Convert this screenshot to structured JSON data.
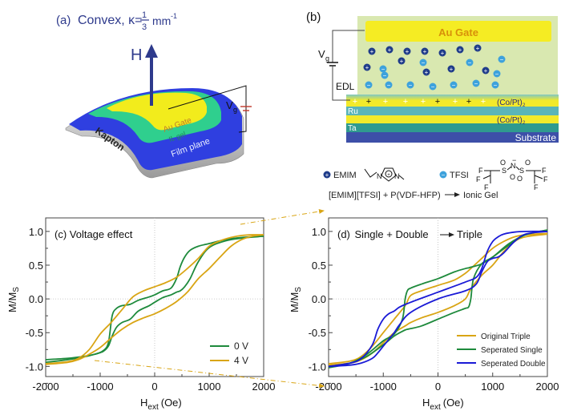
{
  "panel_a": {
    "label": "(a)",
    "title": "Convex, κ=",
    "frac_num": "1",
    "frac_den": "3",
    "unit": "mm",
    "unit_exp": "-1",
    "field_label": "H",
    "layer_labels": {
      "gate": "Au Gate",
      "gel": "IL gel",
      "film": "Film plane",
      "substrate": "Kapton"
    },
    "voltage_label": "V",
    "voltage_sub": "g",
    "colors": {
      "gate": "#f2ec1c",
      "gel": "#2fcf8e",
      "film": "#2f3fe0",
      "kapton": "#c8c8c8",
      "arrow": "#2e3a8c",
      "title": "#2e3a8c"
    }
  },
  "panel_b": {
    "label": "(b)",
    "gate_label": "Au Gate",
    "voltage_label": "V",
    "voltage_sub": "g",
    "edl_label": "EDL",
    "layers": [
      {
        "name": "(Co/Pt)",
        "sub": "2",
        "color": "#7fc7c4"
      },
      {
        "name": "Ru",
        "sub": "",
        "color": "#5bb5b8"
      },
      {
        "name": "(Co/Pt)",
        "sub": "2",
        "color": "#f3ea2a"
      },
      {
        "name": "Ta",
        "sub": "",
        "color": "#2f9a8f"
      },
      {
        "name": "Substrate",
        "sub": "",
        "color": "#3d4fa8"
      }
    ],
    "legend": {
      "cation_label": "EMIM",
      "anion_label": "TFSI",
      "reaction": "[EMIM][TFSI] + P(VDF-HFP)",
      "product": "Ionic Gel"
    },
    "colors": {
      "gel_bg": "#d9e8b0",
      "gate": "#f5ec23",
      "gate_text": "#d8900a",
      "cation": "#1f3c8a",
      "anion": "#3ea2dc"
    }
  },
  "chart_data": [
    {
      "type": "line",
      "title": "(c) Voltage effect",
      "xlabel": "H",
      "xlabel_sub": "ext",
      "xlabel_unit": "(Oe)",
      "ylabel": "M/M",
      "ylabel_sub": "S",
      "xlim": [
        -2000,
        2000
      ],
      "ylim": [
        -1.15,
        1.2
      ],
      "xticks": [
        -2000,
        -1000,
        0,
        1000,
        2000
      ],
      "xtick_labels": [
        "-2000",
        "-1000",
        "0",
        "1000",
        "2000"
      ],
      "yticks": [
        1.0,
        0.5,
        0.0,
        -0.5,
        -1.0
      ],
      "ytick_labels": [
        "1.0",
        "0.5",
        "0.0",
        "-0.5",
        "-1.0"
      ],
      "grid": "dotted at x=0 and y=0",
      "legend_position": "bottom-right",
      "series": [
        {
          "name": "0 V",
          "color": "#1e8a3c",
          "x": [
            -2000,
            -1600,
            -1300,
            -1100,
            -950,
            -850,
            -780,
            -700,
            -600,
            -450,
            -300,
            -100,
            0,
            150,
            300,
            400,
            470,
            550,
            650,
            800,
            1000,
            1300,
            1600,
            2000
          ],
          "y_ascending": [
            -0.94,
            -0.9,
            -0.86,
            -0.82,
            -0.78,
            -0.7,
            -0.55,
            -0.42,
            -0.35,
            -0.3,
            -0.18,
            -0.1,
            -0.05,
            0.02,
            0.06,
            0.1,
            0.12,
            0.18,
            0.3,
            0.55,
            0.76,
            0.86,
            0.9,
            0.93
          ],
          "y_descending": [
            -0.9,
            -0.88,
            -0.85,
            -0.82,
            -0.77,
            -0.65,
            -0.25,
            -0.14,
            -0.1,
            -0.08,
            -0.02,
            0.03,
            0.06,
            0.12,
            0.16,
            0.3,
            0.48,
            0.62,
            0.72,
            0.78,
            0.82,
            0.88,
            0.91,
            0.93
          ]
        },
        {
          "name": "4 V",
          "color": "#d9a514",
          "x": [
            -2000,
            -1600,
            -1400,
            -1200,
            -1000,
            -800,
            -600,
            -400,
            -200,
            0,
            200,
            400,
            600,
            800,
            1000,
            1200,
            1400,
            1600,
            1800,
            2000
          ],
          "y_ascending": [
            -0.97,
            -0.94,
            -0.9,
            -0.82,
            -0.72,
            -0.58,
            -0.45,
            -0.35,
            -0.28,
            -0.22,
            -0.14,
            -0.04,
            0.1,
            0.3,
            0.45,
            0.62,
            0.78,
            0.88,
            0.93,
            0.95
          ],
          "y_descending": [
            -0.96,
            -0.93,
            -0.88,
            -0.75,
            -0.52,
            -0.35,
            -0.16,
            0.03,
            0.12,
            0.18,
            0.24,
            0.32,
            0.45,
            0.6,
            0.78,
            0.86,
            0.91,
            0.94,
            0.95,
            0.95
          ]
        }
      ]
    },
    {
      "type": "line",
      "title": "(d) Single + Double → Triple",
      "title_parts": [
        "(d)",
        "Single + Double",
        "Triple"
      ],
      "xlabel": "H",
      "xlabel_sub": "ext",
      "xlabel_unit": "(Oe)",
      "ylabel": "M/M",
      "ylabel_sub": "S",
      "xlim": [
        -2000,
        2000
      ],
      "ylim": [
        -1.15,
        1.2
      ],
      "xticks": [
        -2000,
        -1000,
        0,
        1000,
        2000
      ],
      "xtick_labels": [
        "-2000",
        "-1000",
        "0",
        "1000",
        "2000"
      ],
      "yticks": [
        1.0,
        0.5,
        0.0,
        -0.5,
        -1.0
      ],
      "ytick_labels": [
        "1.0",
        "0.5",
        "0.0",
        "-0.5",
        "-1.0"
      ],
      "grid": "dotted at x=0 and y=0",
      "legend_position": "bottom-right",
      "series": [
        {
          "name": "Original Triple",
          "color": "#d9a514",
          "x": [
            -2000,
            -1600,
            -1400,
            -1200,
            -1000,
            -800,
            -600,
            -500,
            -300,
            0,
            300,
            500,
            600,
            800,
            1000,
            1200,
            1400,
            1600,
            2000
          ],
          "y_ascending": [
            -0.98,
            -0.95,
            -0.9,
            -0.8,
            -0.65,
            -0.5,
            -0.4,
            -0.35,
            -0.28,
            -0.2,
            -0.1,
            0.0,
            0.15,
            0.35,
            0.5,
            0.7,
            0.85,
            0.92,
            0.96
          ],
          "y_descending": [
            -0.96,
            -0.92,
            -0.85,
            -0.7,
            -0.5,
            -0.3,
            -0.1,
            0.05,
            0.12,
            0.2,
            0.28,
            0.38,
            0.45,
            0.6,
            0.75,
            0.85,
            0.92,
            0.95,
            0.97
          ]
        },
        {
          "name": "Seperated Single",
          "color": "#1e8a3c",
          "x": [
            -2000,
            -1600,
            -1300,
            -1000,
            -800,
            -650,
            -600,
            -560,
            -500,
            -300,
            0,
            300,
            500,
            560,
            600,
            650,
            800,
            1000,
            1300,
            1600,
            2000
          ],
          "y_ascending": [
            -1.0,
            -0.95,
            -0.85,
            -0.68,
            -0.55,
            -0.48,
            -0.46,
            -0.45,
            -0.44,
            -0.4,
            -0.3,
            -0.2,
            -0.14,
            -0.12,
            0.0,
            0.3,
            0.52,
            0.62,
            0.82,
            0.95,
            1.02
          ],
          "y_descending": [
            -1.02,
            -0.95,
            -0.82,
            -0.62,
            -0.52,
            -0.3,
            0.0,
            0.12,
            0.16,
            0.22,
            0.3,
            0.4,
            0.45,
            0.46,
            0.47,
            0.48,
            0.52,
            0.62,
            0.8,
            0.95,
            1.02
          ]
        },
        {
          "name": "Seperated Double",
          "color": "#1a1ad6",
          "x": [
            -2000,
            -1600,
            -1400,
            -1200,
            -1100,
            -1000,
            -900,
            -800,
            -700,
            -500,
            0,
            500,
            700,
            800,
            900,
            1000,
            1100,
            1200,
            1400,
            1600,
            2000
          ],
          "y_ascending": [
            -1.0,
            -0.98,
            -0.95,
            -0.88,
            -0.8,
            -0.7,
            -0.6,
            -0.5,
            -0.38,
            -0.2,
            0.0,
            0.12,
            0.22,
            0.4,
            0.55,
            0.6,
            0.62,
            0.68,
            0.85,
            0.96,
            1.0
          ],
          "y_descending": [
            -1.0,
            -0.95,
            -0.88,
            -0.68,
            -0.45,
            -0.3,
            -0.22,
            -0.18,
            -0.12,
            -0.05,
            0.1,
            0.25,
            0.32,
            0.45,
            0.7,
            0.85,
            0.92,
            0.96,
            0.99,
            1.0,
            1.0
          ]
        }
      ]
    }
  ],
  "connector_color": "#d9a514"
}
